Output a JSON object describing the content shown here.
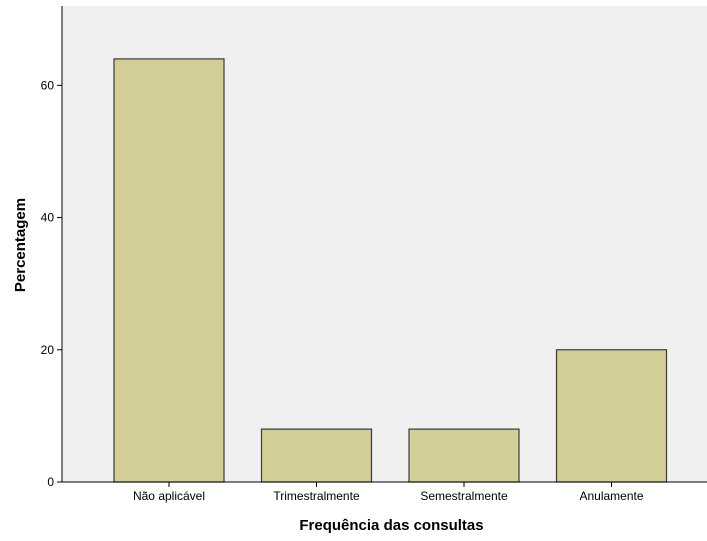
{
  "chart_data": {
    "type": "bar",
    "title": "",
    "xlabel": "Frequência das consultas",
    "ylabel": "Percentagem",
    "categories": [
      "Não aplicável",
      "Trimestralmente",
      "Semestralmente",
      "Anulamente"
    ],
    "values": [
      64,
      8,
      8,
      20
    ],
    "yticks": [
      0,
      20,
      40,
      60
    ],
    "ytick_labels": [
      "0",
      "20",
      "40",
      "60"
    ],
    "ylim": [
      0,
      72
    ],
    "grid": false,
    "legend": "none",
    "colors": {
      "plot_background": "#f0f0f0",
      "bar_fill": "#d3ce97",
      "bar_stroke": "#3a3a3a",
      "axis": "#000000"
    }
  }
}
